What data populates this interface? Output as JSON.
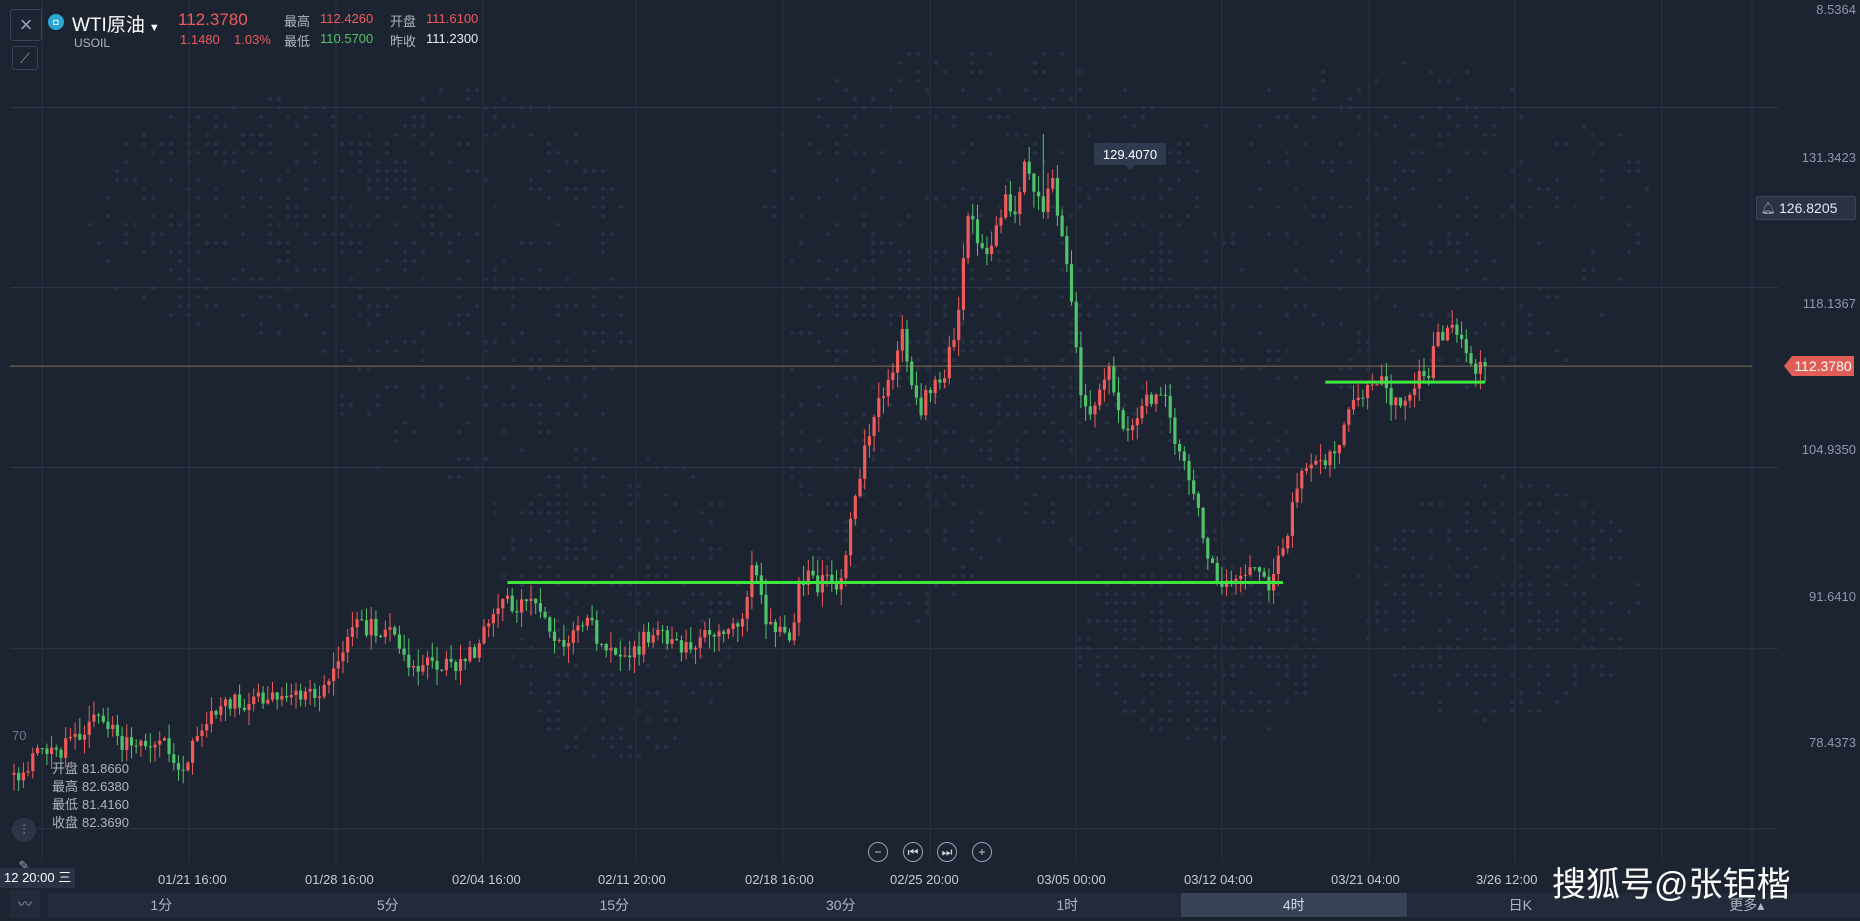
{
  "header": {
    "symbol_name": "WTI原油",
    "symbol_code": "USOIL",
    "last_price": "112.3780",
    "change": "1.1480",
    "change_pct": "1.03%",
    "high_label": "最高",
    "high": "112.4260",
    "open_label": "开盘",
    "open": "111.6100",
    "low_label": "最低",
    "low": "110.5700",
    "prev_close_label": "昨收",
    "prev_close": "111.2300"
  },
  "crosshair_ohlc": {
    "open_label": "开盘",
    "open": "81.8660",
    "high_label": "最高",
    "high": "82.6380",
    "low_label": "最低",
    "low": "81.4160",
    "close_label": "收盘",
    "close": "82.3690"
  },
  "price_axis": {
    "ticks": [
      "131.3423",
      "118.1367",
      "104.9350",
      "91.6410",
      "78.4373"
    ],
    "top_partial": "8.5364",
    "left_partial": "70",
    "alert_price": "126.8205",
    "last_price_tag": "112.3780",
    "peak_label": "129.4070"
  },
  "time_axis": {
    "current": "12 20:00",
    "current_icon": "三",
    "labels": [
      "01/21 16:00",
      "01/28 16:00",
      "02/04 16:00",
      "02/11 20:00",
      "02/18 16:00",
      "02/25 20:00",
      "03/05 00:00",
      "03/12 04:00",
      "03/21 04:00",
      "3/26 12:00"
    ]
  },
  "periods": [
    {
      "label": "1分",
      "active": false
    },
    {
      "label": "5分",
      "active": false
    },
    {
      "label": "15分",
      "active": false
    },
    {
      "label": "30分",
      "active": false
    },
    {
      "label": "1时",
      "active": false
    },
    {
      "label": "4时",
      "active": true
    },
    {
      "label": "日K",
      "active": false
    },
    {
      "label": "更多▴",
      "active": false
    }
  ],
  "watermark": "搜狐号@张钜楷",
  "colors": {
    "up": "#ef5b5b",
    "down": "#4fc36a",
    "support_line": "#3ee63e",
    "background": "#1c2331",
    "last_line": "#c8a16a"
  },
  "chart_data": {
    "type": "candlestick",
    "title": "WTI原油 USOIL",
    "timeframe": "4时",
    "ylim": [
      76.0,
      138.5
    ],
    "y_ticks": [
      78.4373,
      91.641,
      104.935,
      118.1367,
      131.3423
    ],
    "x_labels": [
      "01/21 16:00",
      "01/28 16:00",
      "02/04 16:00",
      "02/11 20:00",
      "02/18 16:00",
      "02/25 20:00",
      "03/05 00:00",
      "03/12 04:00",
      "03/21 04:00",
      "3/26 12:00"
    ],
    "price_path": [
      [
        0,
        82.4
      ],
      [
        2,
        82.0
      ],
      [
        4,
        83.8
      ],
      [
        7,
        84.5
      ],
      [
        10,
        84.0
      ],
      [
        13,
        85.3
      ],
      [
        16,
        86.2
      ],
      [
        19,
        86.6
      ],
      [
        22,
        85.2
      ],
      [
        25,
        84.2
      ],
      [
        28,
        84.8
      ],
      [
        31,
        85.0
      ],
      [
        34,
        83.5
      ],
      [
        36,
        83.0
      ],
      [
        38,
        84.8
      ],
      [
        41,
        86.8
      ],
      [
        44,
        87.5
      ],
      [
        47,
        87.8
      ],
      [
        50,
        87.2
      ],
      [
        53,
        88.0
      ],
      [
        56,
        88.6
      ],
      [
        59,
        88.2
      ],
      [
        62,
        88.8
      ],
      [
        65,
        88.2
      ],
      [
        67,
        89.5
      ],
      [
        70,
        91.5
      ],
      [
        72,
        93.8
      ],
      [
        74,
        93.4
      ],
      [
        77,
        93.0
      ],
      [
        80,
        92.6
      ],
      [
        83,
        90.8
      ],
      [
        86,
        90.3
      ],
      [
        89,
        90.5
      ],
      [
        92,
        90.9
      ],
      [
        95,
        90.6
      ],
      [
        98,
        91.4
      ],
      [
        100,
        93.0
      ],
      [
        102,
        94.8
      ],
      [
        104,
        95.3
      ],
      [
        107,
        94.8
      ],
      [
        110,
        95.7
      ],
      [
        113,
        93.4
      ],
      [
        116,
        91.8
      ],
      [
        119,
        92.6
      ],
      [
        122,
        93.6
      ],
      [
        125,
        92.0
      ],
      [
        128,
        91.5
      ],
      [
        131,
        91.2
      ],
      [
        134,
        92.2
      ],
      [
        137,
        93.2
      ],
      [
        140,
        92.0
      ],
      [
        143,
        91.6
      ],
      [
        146,
        92.5
      ],
      [
        149,
        93.0
      ],
      [
        152,
        92.7
      ],
      [
        155,
        93.8
      ],
      [
        157,
        98.3
      ],
      [
        159,
        95.0
      ],
      [
        161,
        93.2
      ],
      [
        163,
        92.7
      ],
      [
        165,
        92.3
      ],
      [
        167,
        96.0
      ],
      [
        169,
        97.8
      ],
      [
        171,
        96.2
      ],
      [
        173,
        97.0
      ],
      [
        175,
        96.3
      ],
      [
        177,
        98.5
      ],
      [
        179,
        103.5
      ],
      [
        181,
        106.0
      ],
      [
        183,
        108.6
      ],
      [
        185,
        110.6
      ],
      [
        187,
        112.5
      ],
      [
        189,
        114.5
      ],
      [
        191,
        110.5
      ],
      [
        193,
        109.0
      ],
      [
        195,
        111.0
      ],
      [
        197,
        110.5
      ],
      [
        199,
        113.5
      ],
      [
        201,
        116.0
      ],
      [
        203,
        123.5
      ],
      [
        205,
        122.0
      ],
      [
        207,
        120.0
      ],
      [
        209,
        123.0
      ],
      [
        211,
        124.5
      ],
      [
        213,
        123.0
      ],
      [
        215,
        127.5
      ],
      [
        217,
        125.0
      ],
      [
        219,
        123.8
      ],
      [
        221,
        126.0
      ],
      [
        223,
        121.8
      ],
      [
        225,
        117.0
      ],
      [
        227,
        110.0
      ],
      [
        229,
        109.0
      ],
      [
        231,
        111.0
      ],
      [
        233,
        112.5
      ],
      [
        235,
        109.5
      ],
      [
        237,
        107.0
      ],
      [
        239,
        108.8
      ],
      [
        241,
        110.0
      ],
      [
        243,
        109.6
      ],
      [
        245,
        109.6
      ],
      [
        247,
        107.2
      ],
      [
        249,
        104.8
      ],
      [
        251,
        102.8
      ],
      [
        253,
        99.8
      ],
      [
        255,
        97.3
      ],
      [
        257,
        96.5
      ],
      [
        259,
        97.2
      ],
      [
        261,
        97.0
      ],
      [
        263,
        97.8
      ],
      [
        265,
        97.0
      ],
      [
        267,
        96.2
      ],
      [
        269,
        98.0
      ],
      [
        271,
        100.5
      ],
      [
        273,
        103.8
      ],
      [
        275,
        105.5
      ],
      [
        277,
        105.6
      ],
      [
        279,
        104.8
      ],
      [
        281,
        106.2
      ],
      [
        283,
        107.9
      ],
      [
        285,
        109.8
      ],
      [
        287,
        110.7
      ],
      [
        289,
        111.0
      ],
      [
        291,
        112.2
      ],
      [
        293,
        110.0
      ],
      [
        295,
        109.6
      ],
      [
        297,
        110.3
      ],
      [
        299,
        111.4
      ],
      [
        301,
        112.2
      ],
      [
        303,
        114.4
      ],
      [
        305,
        115.5
      ],
      [
        307,
        115.1
      ],
      [
        309,
        114.0
      ],
      [
        311,
        112.3
      ],
      [
        313,
        112.4
      ]
    ],
    "peak": {
      "x": 219,
      "value": 129.407
    },
    "horizontal_lines": [
      {
        "name": "support",
        "y": 96.5,
        "x_start": 105,
        "x_end": 270
      },
      {
        "name": "support",
        "y": 111.2,
        "x_start": 279,
        "x_end": 313
      }
    ],
    "last_price": 112.378,
    "alert_price": 126.8205,
    "grid": true
  }
}
